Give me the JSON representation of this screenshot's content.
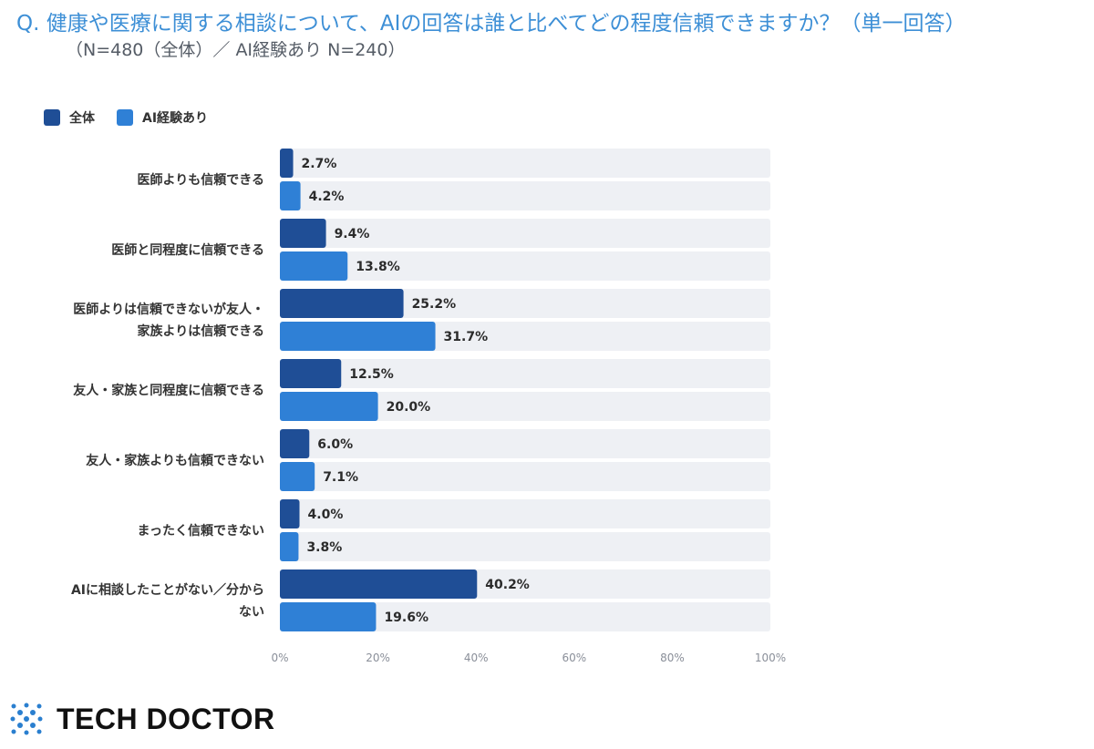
{
  "question": "Q. 健康や医療に関する相談について、AIの回答は誰と比べてどの程度信頼できますか？（単一回答）",
  "subtitle": "（N=480（全体）／ AI経験あり N=240）",
  "colors": {
    "series1": "#1f4e96",
    "series2": "#2f80d6",
    "track": "#eef0f4",
    "accent": "#3d8fd6"
  },
  "chart_data": {
    "type": "bar",
    "orientation": "horizontal",
    "categories": [
      [
        "医師よりも信頼できる"
      ],
      [
        "医師と同程度に信頼できる"
      ],
      [
        "医師よりは信頼できないが友人・",
        "家族よりは信頼できる"
      ],
      [
        "友人・家族と同程度に信頼できる"
      ],
      [
        "友人・家族よりも信頼できない"
      ],
      [
        "まったく信頼できない"
      ],
      [
        "AIに相談したことがない／分から",
        "ない"
      ]
    ],
    "series": [
      {
        "name": "全体",
        "values": [
          2.7,
          9.4,
          25.2,
          12.5,
          6.0,
          4.0,
          40.2
        ]
      },
      {
        "name": "AI経験あり",
        "values": [
          4.2,
          13.8,
          31.7,
          20.0,
          7.1,
          3.8,
          19.6
        ]
      }
    ],
    "value_suffix": "%",
    "xlim": [
      0,
      100
    ],
    "x_ticks": [
      "0%",
      "20%",
      "40%",
      "60%",
      "80%",
      "100%"
    ],
    "legend_position": "top-left",
    "grid": false
  },
  "brand": {
    "name": "TECH DOCTOR",
    "logo_icon": "dotted-cross-logo-icon"
  }
}
